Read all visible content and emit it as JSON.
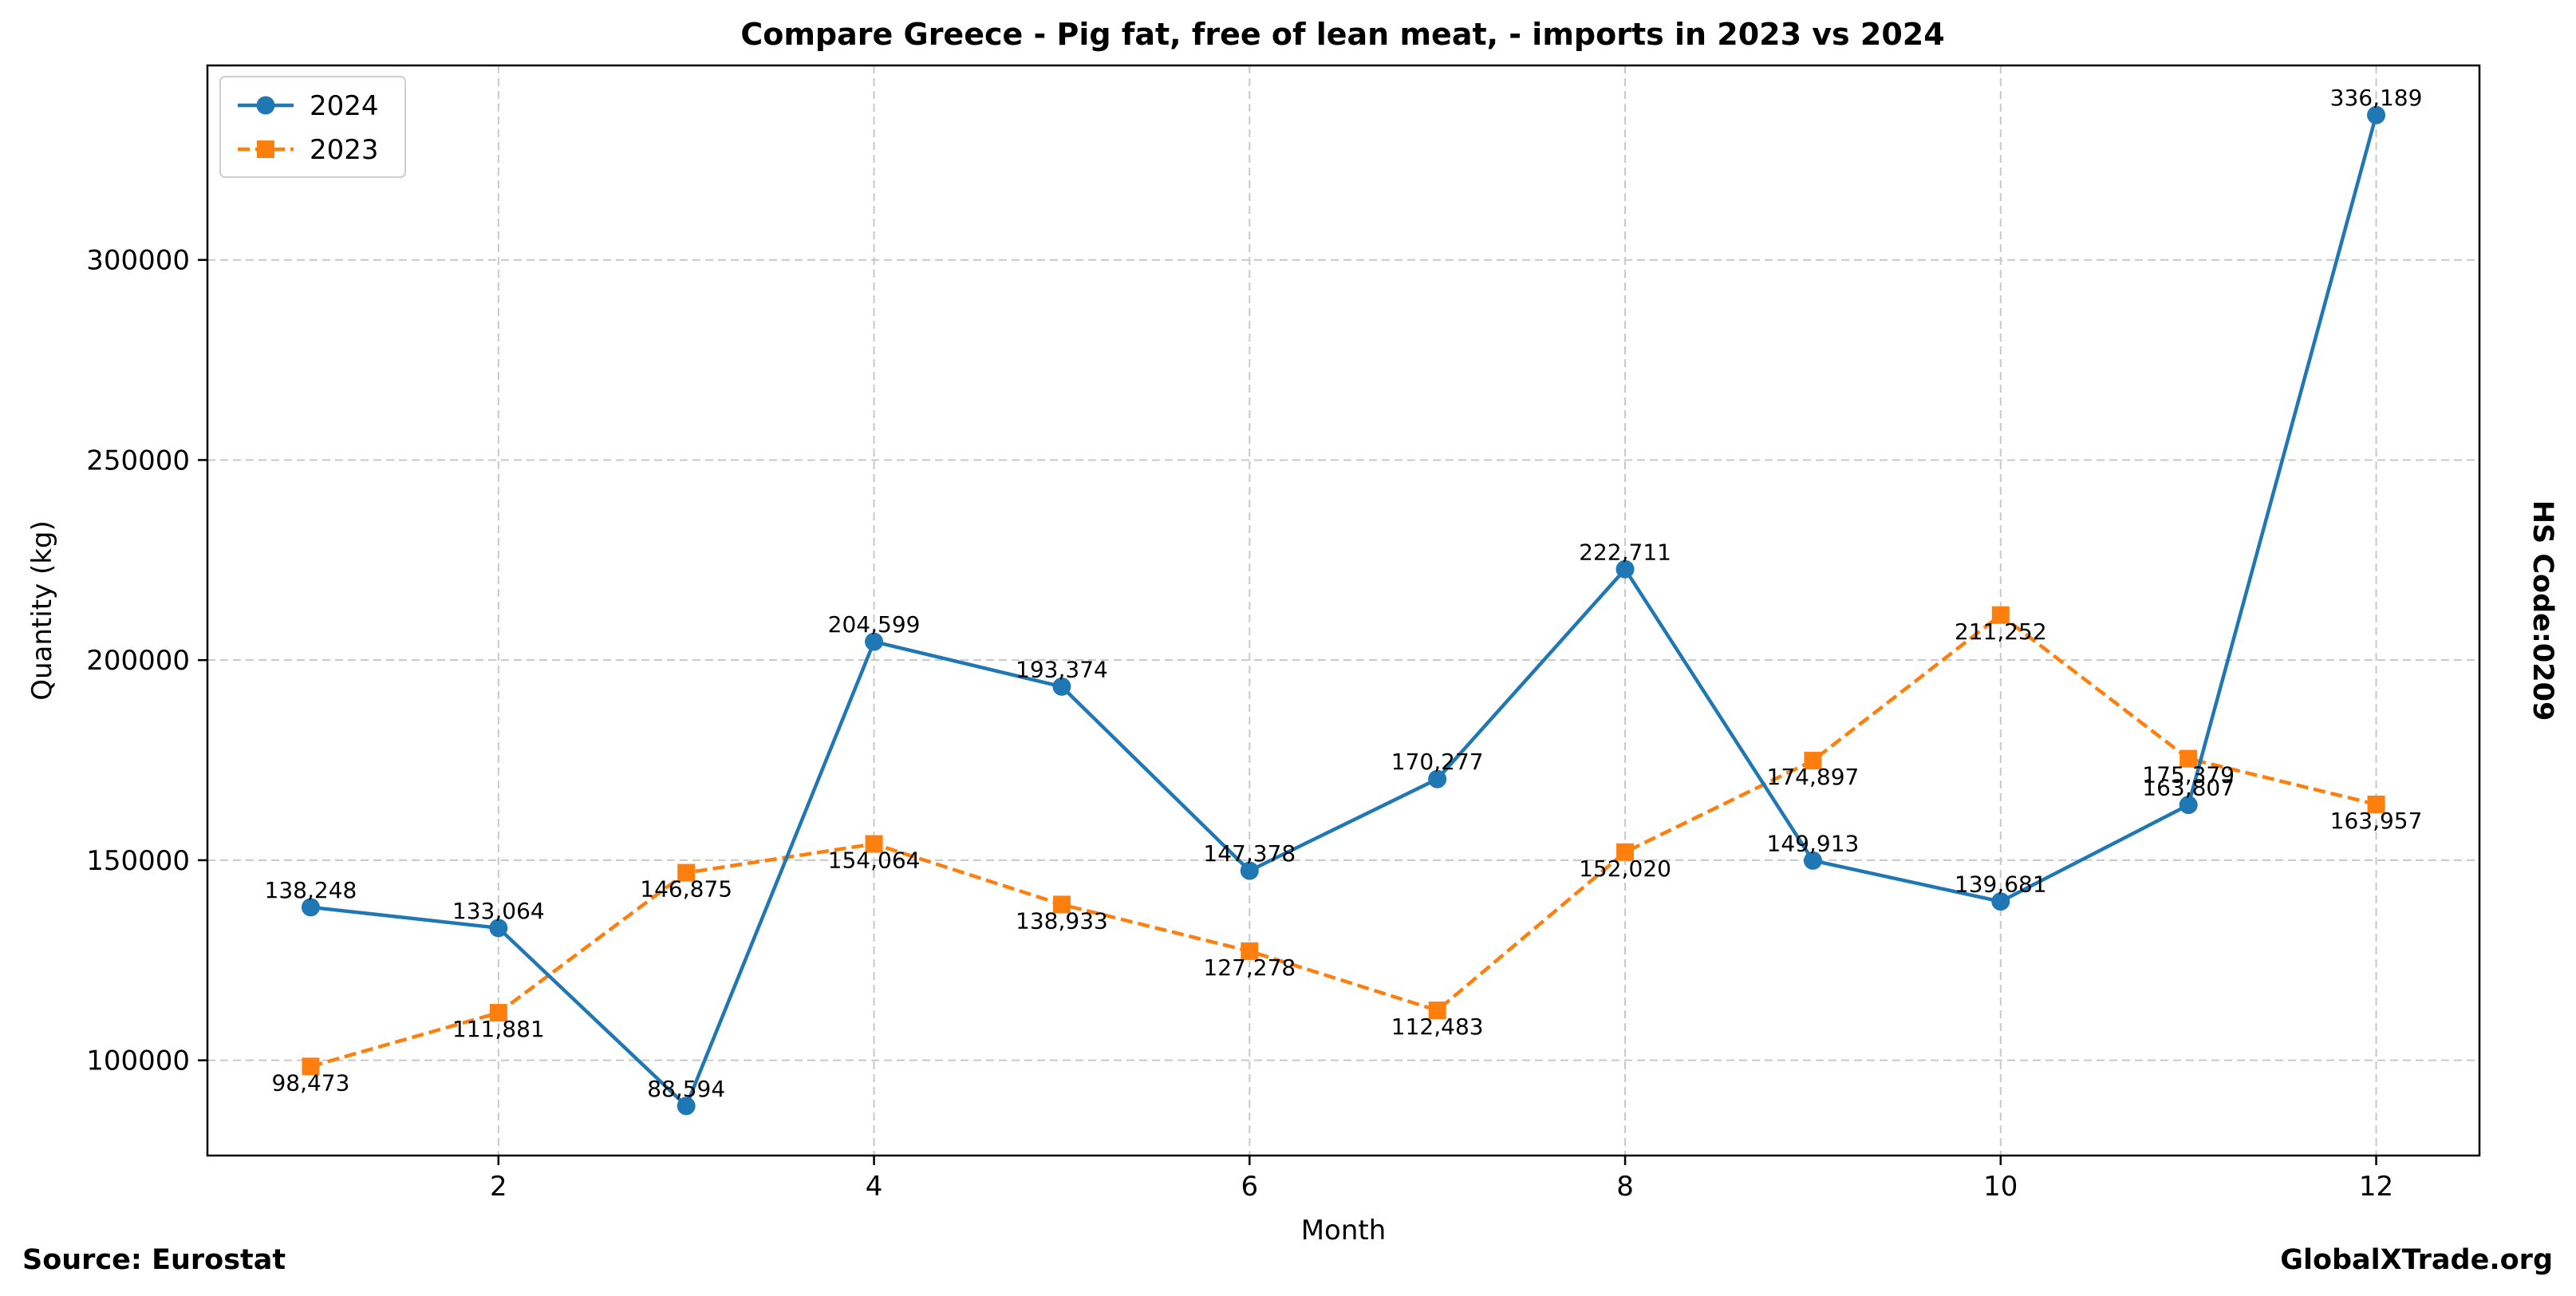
{
  "chart_data": {
    "type": "line",
    "title": "Compare Greece - Pig fat, free of lean meat, - imports in 2023 vs 2024",
    "xlabel": "Month",
    "ylabel": "Quantity (kg)",
    "x": [
      1,
      2,
      3,
      4,
      5,
      6,
      7,
      8,
      9,
      10,
      11,
      12
    ],
    "xlim": [
      0.45,
      12.55
    ],
    "ylim": [
      76200,
      348600
    ],
    "xticks": [
      2,
      4,
      6,
      8,
      10,
      12
    ],
    "yticks": [
      100000,
      150000,
      200000,
      250000,
      300000
    ],
    "grid": true,
    "legend_position": "top-left",
    "series": [
      {
        "name": "2024",
        "color": "#1f77b4",
        "line_style": "solid",
        "marker": "circle",
        "values": [
          138248,
          133064,
          88594,
          204599,
          193374,
          147378,
          170277,
          222711,
          149913,
          139681,
          163807,
          336189
        ],
        "labels": [
          "138,248",
          "133,064",
          "88,594",
          "204,599",
          "193,374",
          "147,378",
          "170,277",
          "222,711",
          "149,913",
          "139,681",
          "163,807",
          "336,189"
        ]
      },
      {
        "name": "2023",
        "color": "#ff7f0e",
        "line_style": "dashed",
        "marker": "square",
        "values": [
          98473,
          111881,
          146875,
          154064,
          138933,
          127278,
          112483,
          152020,
          174897,
          211252,
          175379,
          163957
        ],
        "labels": [
          "98,473",
          "111,881",
          "146,875",
          "154,064",
          "138,933",
          "127,278",
          "112,483",
          "152,020",
          "174,897",
          "211,252",
          "175,379",
          "163,957"
        ]
      }
    ]
  },
  "footer": {
    "source": "Source: Eurostat",
    "brand": "GlobalXTrade.org",
    "side_label": "HS Code:0209"
  }
}
